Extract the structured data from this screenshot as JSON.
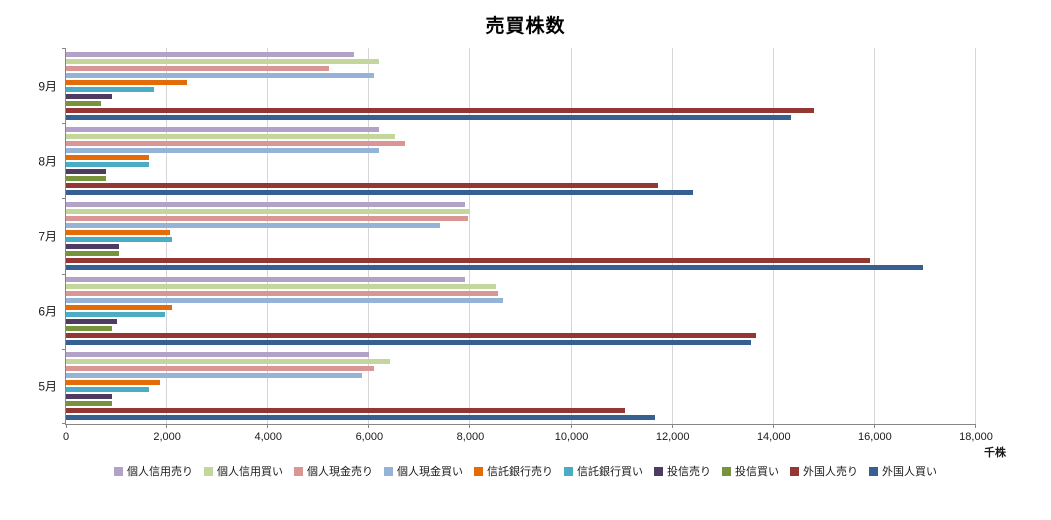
{
  "chart_data": {
    "type": "bar",
    "orientation": "horizontal",
    "title": "売買株数",
    "xlabel_unit": "千株",
    "xlim": [
      0,
      18000
    ],
    "grid": true,
    "legend_position": "bottom",
    "x_ticks": [
      "0",
      "2,000",
      "4,000",
      "6,000",
      "8,000",
      "10,000",
      "12,000",
      "14,000",
      "16,000",
      "18,000"
    ],
    "categories": [
      "9月",
      "8月",
      "7月",
      "6月",
      "5月"
    ],
    "series": [
      {
        "name": "個人信用売り",
        "color": "#b3a2c7",
        "values": [
          5700,
          6200,
          7900,
          7900,
          6000
        ]
      },
      {
        "name": "個人信用買い",
        "color": "#c3d69b",
        "values": [
          6200,
          6500,
          8000,
          8500,
          6400
        ]
      },
      {
        "name": "個人現金売り",
        "color": "#d99694",
        "values": [
          5200,
          6700,
          7950,
          8550,
          6100
        ]
      },
      {
        "name": "個人現金買い",
        "color": "#95b3d7",
        "values": [
          6100,
          6200,
          7400,
          8650,
          5850
        ]
      },
      {
        "name": "信託銀行売り",
        "color": "#e36c09",
        "values": [
          2400,
          1650,
          2050,
          2100,
          1850
        ]
      },
      {
        "name": "信託銀行買い",
        "color": "#4bacc6",
        "values": [
          1750,
          1650,
          2100,
          1950,
          1650
        ]
      },
      {
        "name": "投信売り",
        "color": "#4d3b62",
        "values": [
          900,
          800,
          1050,
          1000,
          900
        ]
      },
      {
        "name": "投信買い",
        "color": "#77933c",
        "values": [
          700,
          800,
          1050,
          900,
          900
        ]
      },
      {
        "name": "外国人売り",
        "color": "#943634",
        "values": [
          14800,
          11700,
          15900,
          13650,
          11050
        ]
      },
      {
        "name": "外国人買い",
        "color": "#366092",
        "values": [
          14350,
          12400,
          16950,
          13550,
          11650
        ]
      }
    ]
  }
}
